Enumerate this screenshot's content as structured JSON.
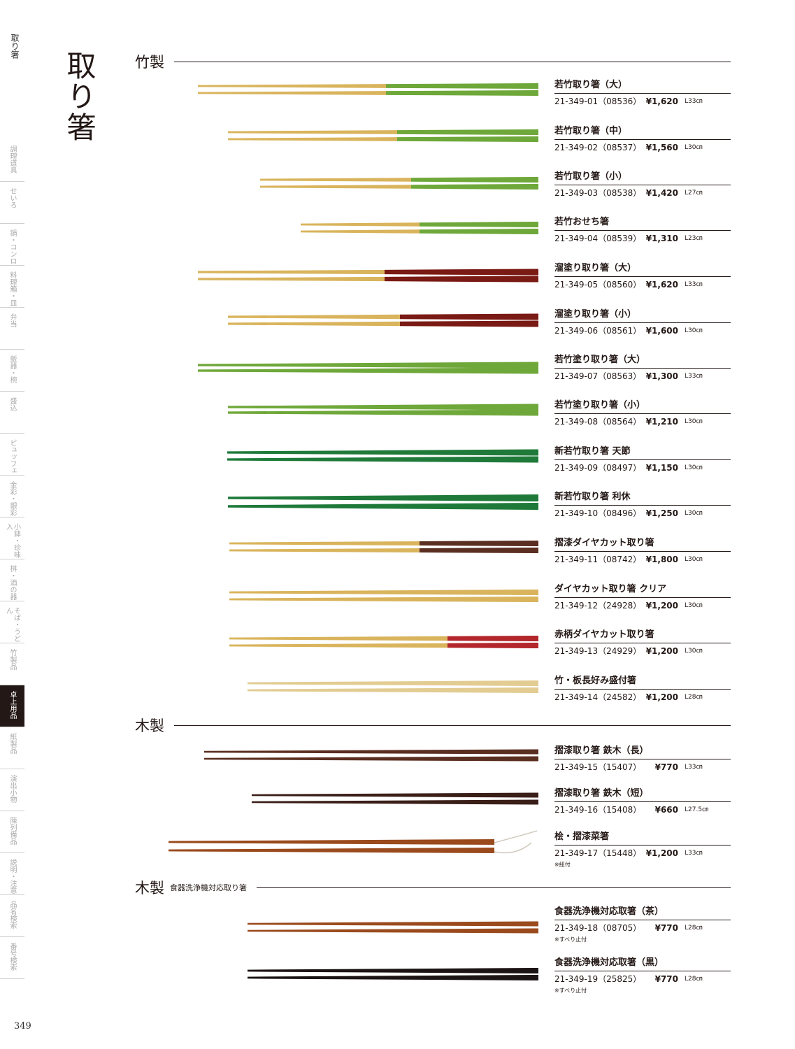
{
  "side": {
    "title": "取り箸",
    "tabs": [
      "調理道具",
      "せいろ",
      "鍋・コンロ",
      "料理箱・皿",
      "弁当",
      "飯器・椀",
      "盛込",
      "ビュッフェ",
      "金彩・銀彩",
      "小鉢・珍味入",
      "桝・酒の器",
      "そば・うどん",
      "竹製品",
      "卓上用品",
      "紙製品",
      "演出小物",
      "陳列備品",
      "説明・注意",
      "品名検索",
      "番号検索"
    ],
    "active_tab": "卓上用品"
  },
  "page_number": "349",
  "big_title": "取り箸",
  "sections": [
    {
      "title": "竹製",
      "subtitle": ""
    },
    {
      "title": "木製",
      "subtitle": ""
    },
    {
      "title": "木製",
      "subtitle": "食器洗浄機対応取り箸"
    }
  ],
  "products": [
    {
      "name": "若竹取り箸（大）",
      "code": "21-349-01（08536）",
      "price": "¥1,620",
      "length": "L33㎝",
      "note": ""
    },
    {
      "name": "若竹取り箸（中）",
      "code": "21-349-02（08537）",
      "price": "¥1,560",
      "length": "L30㎝",
      "note": ""
    },
    {
      "name": "若竹取り箸（小）",
      "code": "21-349-03（08538）",
      "price": "¥1,420",
      "length": "L27㎝",
      "note": ""
    },
    {
      "name": "若竹おせち箸",
      "code": "21-349-04（08539）",
      "price": "¥1,310",
      "length": "L23㎝",
      "note": ""
    },
    {
      "name": "溜塗り取り箸（大）",
      "code": "21-349-05（08560）",
      "price": "¥1,620",
      "length": "L33㎝",
      "note": ""
    },
    {
      "name": "溜塗り取り箸（小）",
      "code": "21-349-06（08561）",
      "price": "¥1,600",
      "length": "L30㎝",
      "note": ""
    },
    {
      "name": "若竹塗り取り箸（大）",
      "code": "21-349-07（08563）",
      "price": "¥1,300",
      "length": "L33㎝",
      "note": ""
    },
    {
      "name": "若竹塗り取り箸（小）",
      "code": "21-349-08（08564）",
      "price": "¥1,210",
      "length": "L30㎝",
      "note": ""
    },
    {
      "name": "新若竹取り箸 天節",
      "code": "21-349-09（08497）",
      "price": "¥1,150",
      "length": "L30㎝",
      "note": ""
    },
    {
      "name": "新若竹取り箸 利休",
      "code": "21-349-10（08496）",
      "price": "¥1,250",
      "length": "L30㎝",
      "note": ""
    },
    {
      "name": "摺漆ダイヤカット取り箸",
      "code": "21-349-11（08742）",
      "price": "¥1,800",
      "length": "L30㎝",
      "note": ""
    },
    {
      "name": "ダイヤカット取り箸 クリア",
      "code": "21-349-12（24928）",
      "price": "¥1,200",
      "length": "L30㎝",
      "note": ""
    },
    {
      "name": "赤柄ダイヤカット取り箸",
      "code": "21-349-13（24929）",
      "price": "¥1,200",
      "length": "L30㎝",
      "note": ""
    },
    {
      "name": "竹・板長好み盛付箸",
      "code": "21-349-14（24582）",
      "price": "¥1,200",
      "length": "L28㎝",
      "note": ""
    },
    {
      "name": "摺漆取り箸 鉄木（長）",
      "code": "21-349-15（15407）",
      "price": "¥770",
      "length": "L33㎝",
      "note": ""
    },
    {
      "name": "摺漆取り箸 鉄木（短）",
      "code": "21-349-16（15408）",
      "price": "¥660",
      "length": "L27.5㎝",
      "note": ""
    },
    {
      "name": "桧・摺漆菜箸",
      "code": "21-349-17（15448）",
      "price": "¥1,200",
      "length": "L33㎝",
      "note": "※紐付"
    },
    {
      "name": "食器洗浄機対応取箸（茶）",
      "code": "21-349-18（08705）",
      "price": "¥770",
      "length": "L28㎝",
      "note": "※すべり止付"
    },
    {
      "name": "食器洗浄機対応取箸（黒）",
      "code": "21-349-19（25825）",
      "price": "¥770",
      "length": "L28㎝",
      "note": "※すべり止付"
    }
  ],
  "colors": {
    "bamboo": "#d9b45c",
    "green": "#6fa83a",
    "lacquer_red": "#7a1a14",
    "deep_green": "#1f7a3a",
    "walnut": "#5a2e20",
    "red": "#b3262b",
    "brown": "#9a4a1c",
    "black": "#1c1414",
    "ink": "#231815"
  }
}
